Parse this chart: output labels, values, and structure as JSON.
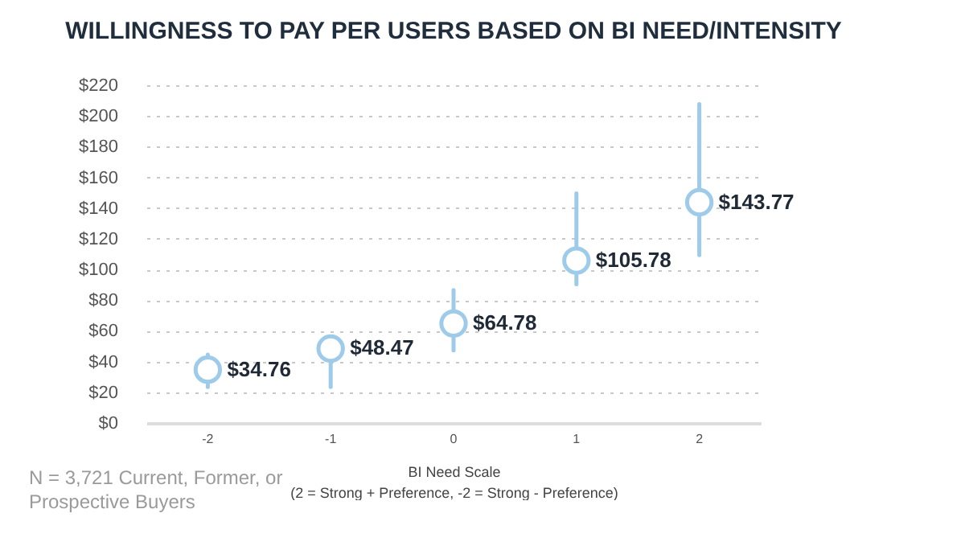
{
  "chart_data": {
    "type": "scatter",
    "title": "WILLINGNESS TO PAY PER USERS BASED ON BI NEED/INTENSITY",
    "xlabel": "BI Need Scale\n(2 = Strong + Preference, -2 = Strong - Preference)",
    "categories": [
      "-2",
      "-1",
      "0",
      "1",
      "2"
    ],
    "series": [
      {
        "color": "#9ecbea",
        "values": [
          34.76,
          48.47,
          64.78,
          105.78,
          143.77
        ],
        "errors": [
          [
            23.5,
            44.5
          ],
          [
            23.5,
            48.47
          ],
          [
            47.3,
            86.6
          ],
          [
            90.4,
            149.6
          ],
          [
            109.3,
            207.7
          ]
        ],
        "value_labels": [
          "$34.76",
          "$48.47",
          "$64.78",
          "$105.78",
          "$143.77"
        ]
      }
    ],
    "ylim": [
      0,
      220
    ],
    "yticks": [
      {
        "value": 0,
        "label": "$0"
      },
      {
        "value": 20,
        "label": "$20"
      },
      {
        "value": 40,
        "label": "$40"
      },
      {
        "value": 60,
        "label": "$60"
      },
      {
        "value": 80,
        "label": "$80"
      },
      {
        "value": 100,
        "label": "$100"
      },
      {
        "value": 120,
        "label": "$120"
      },
      {
        "value": 140,
        "label": "$140"
      },
      {
        "value": 160,
        "label": "$160"
      },
      {
        "value": 180,
        "label": "$180"
      },
      {
        "value": 200,
        "label": "$200"
      },
      {
        "value": 220,
        "label": "$220"
      }
    ],
    "grid": "y",
    "marker": "circle",
    "annotations": [
      "N = 3,721 Current, Former, or Prospective Buyers"
    ]
  }
}
